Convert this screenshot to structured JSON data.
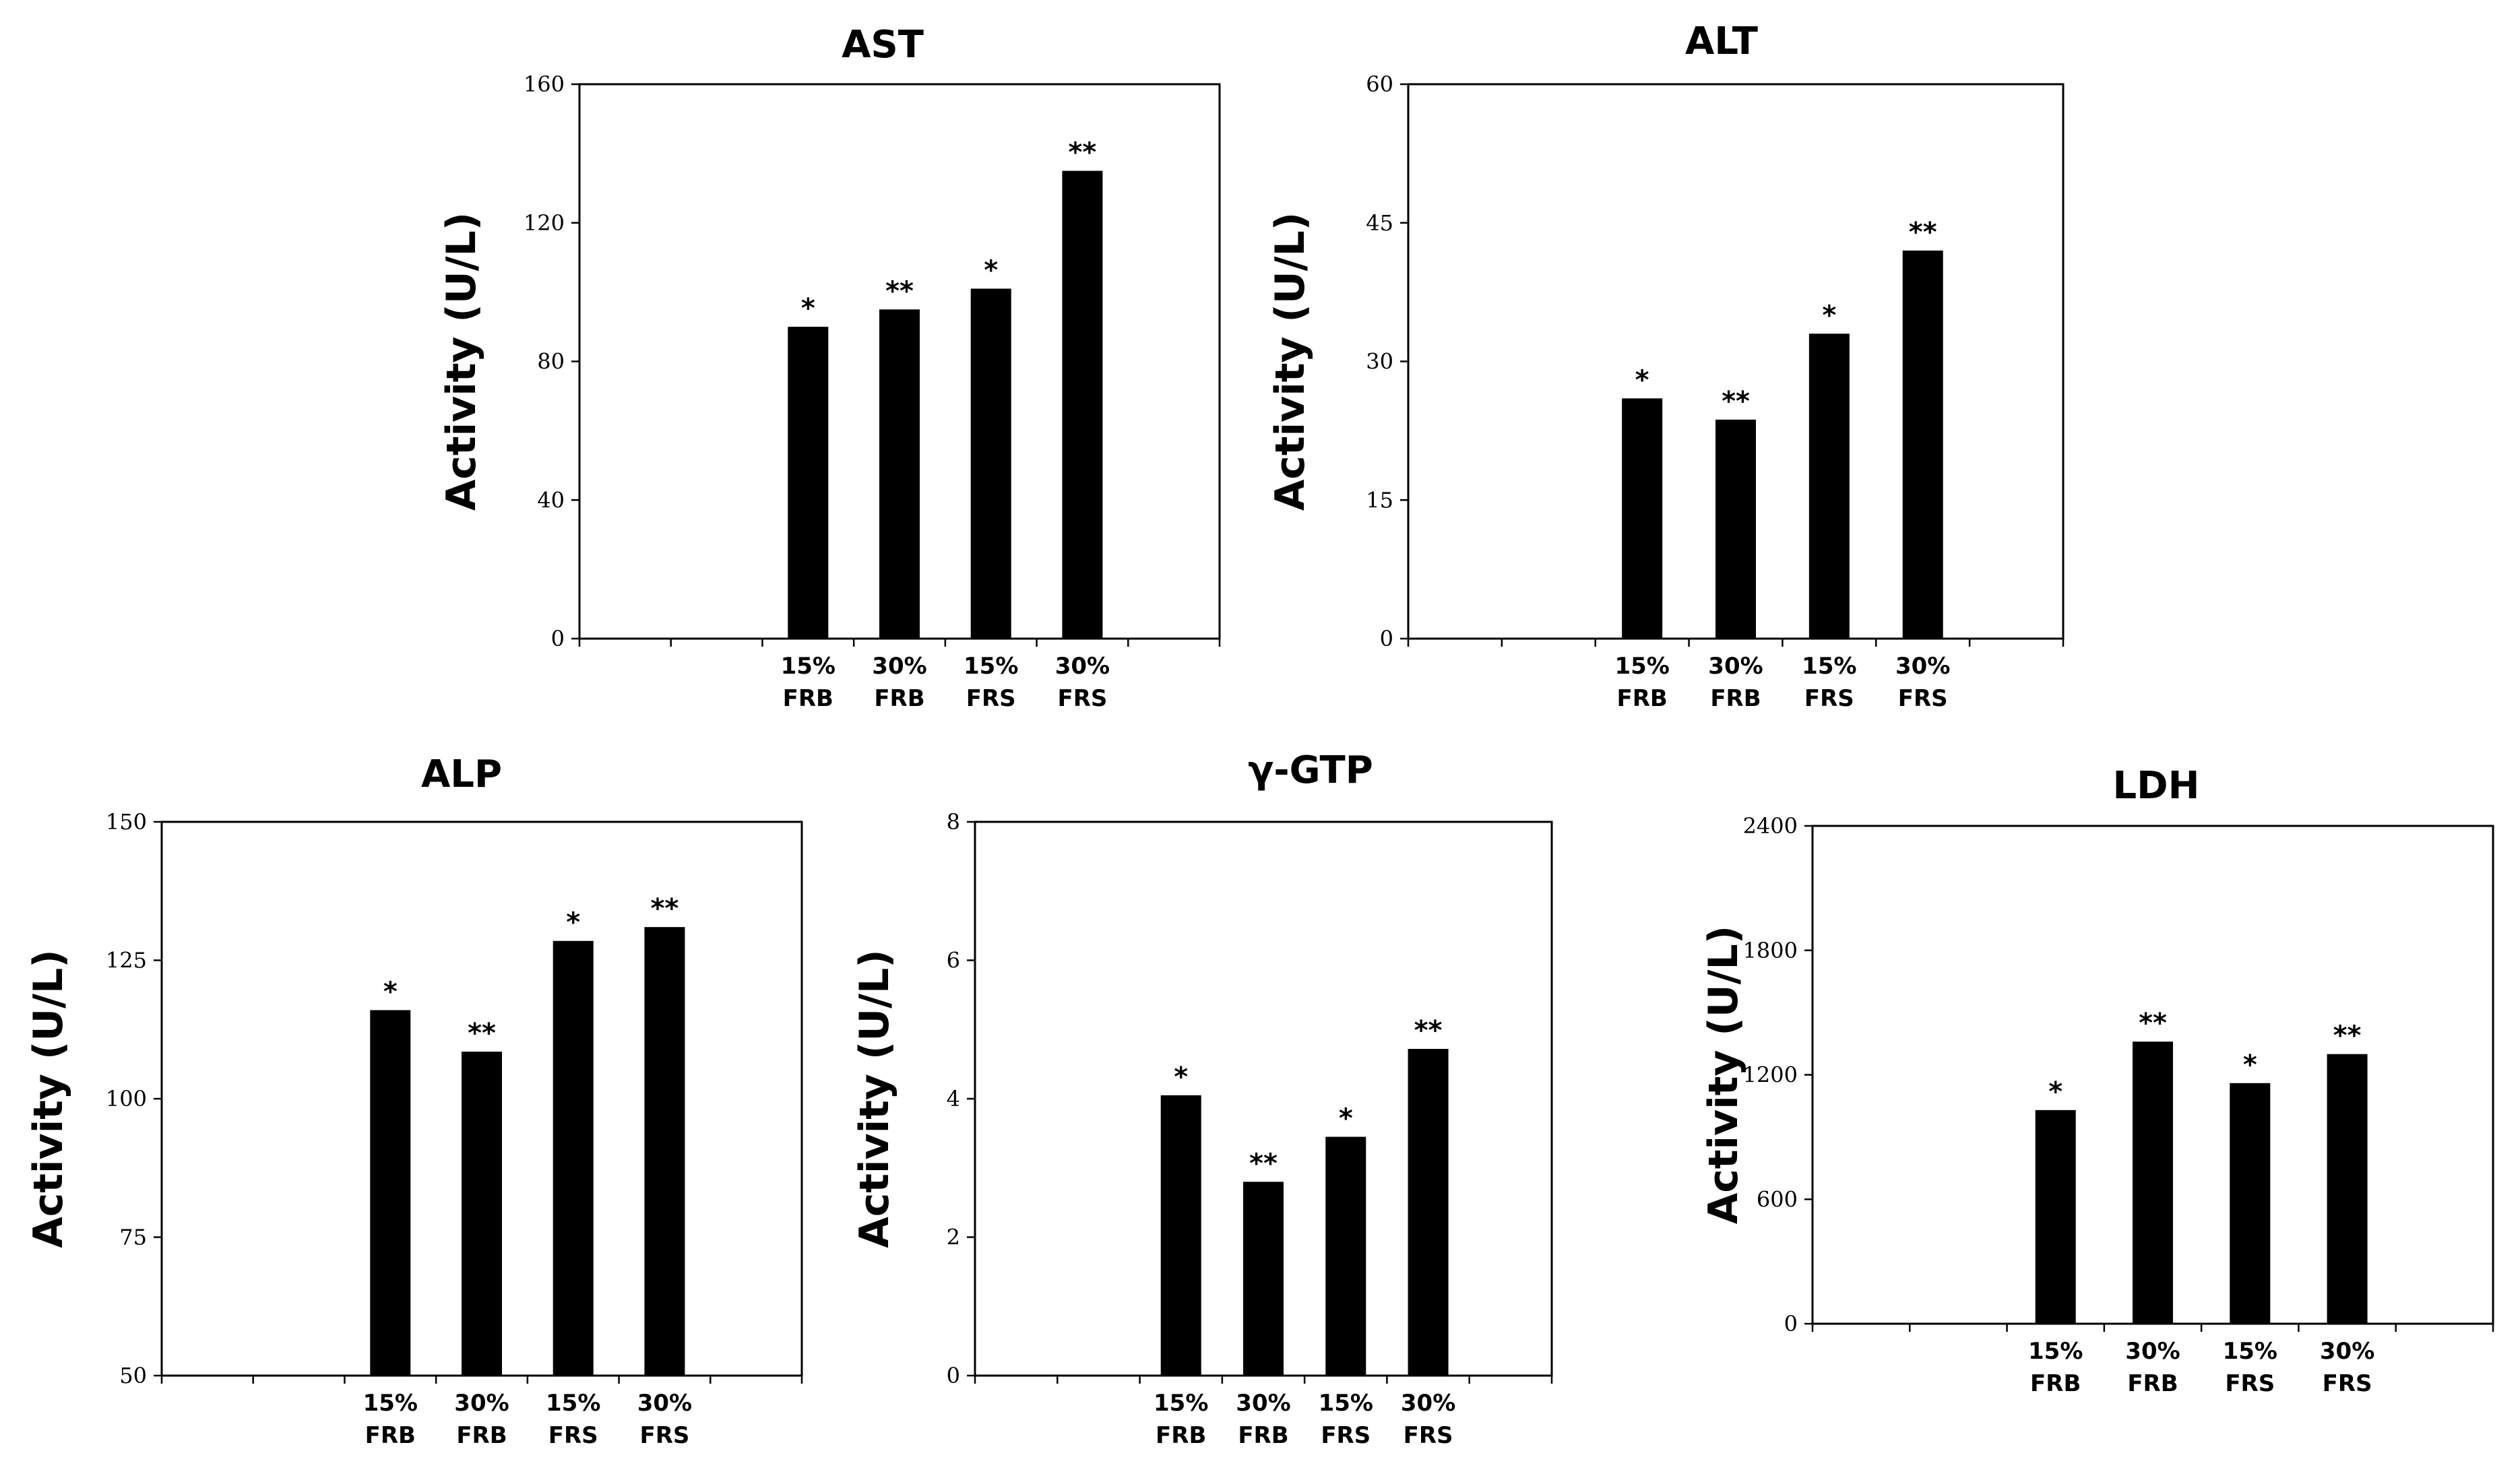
{
  "colors": {
    "bar": "#000000",
    "background": "#ffffff"
  },
  "chart_data": [
    {
      "type": "bar",
      "title": "AST",
      "ylabel": "Activity (U/L)",
      "xlabel": "",
      "ylim": [
        0,
        160
      ],
      "yticks": [
        "0",
        "40",
        "80",
        "120",
        "160"
      ],
      "slots": 7,
      "first_bar_slot": 2,
      "categories": [
        [
          "15%",
          "FRB"
        ],
        [
          "30%",
          "FRB"
        ],
        [
          "15%",
          "FRS"
        ],
        [
          "30%",
          "FRS"
        ]
      ],
      "values": [
        90,
        95,
        101,
        135
      ],
      "significance": [
        "*",
        "**",
        "*",
        "**"
      ]
    },
    {
      "type": "bar",
      "title": "ALT",
      "ylabel": "Activity (U/L)",
      "xlabel": "",
      "ylim": [
        0,
        60
      ],
      "yticks": [
        "0",
        "15",
        "30",
        "45",
        "60"
      ],
      "slots": 7,
      "first_bar_slot": 2,
      "categories": [
        [
          "15%",
          "FRB"
        ],
        [
          "30%",
          "FRB"
        ],
        [
          "15%",
          "FRS"
        ],
        [
          "30%",
          "FRS"
        ]
      ],
      "values": [
        26,
        23.7,
        33,
        42
      ],
      "significance": [
        "*",
        "**",
        "*",
        "**"
      ]
    },
    {
      "type": "bar",
      "title": "ALP",
      "ylabel": "Activity (U/L)",
      "xlabel": "",
      "ylim": [
        50,
        150
      ],
      "yticks": [
        "50",
        "75",
        "100",
        "125",
        "150"
      ],
      "slots": 7,
      "first_bar_slot": 2,
      "categories": [
        [
          "15%",
          "FRB"
        ],
        [
          "30%",
          "FRB"
        ],
        [
          "15%",
          "FRS"
        ],
        [
          "30%",
          "FRS"
        ]
      ],
      "values": [
        116,
        108.5,
        128.5,
        131
      ],
      "significance": [
        "*",
        "**",
        "*",
        "**"
      ]
    },
    {
      "type": "bar",
      "title": "γ-GTP",
      "ylabel": "Activity (U/L)",
      "xlabel": "",
      "ylim": [
        0,
        8
      ],
      "yticks": [
        "0",
        "2",
        "4",
        "6",
        "8"
      ],
      "slots": 7,
      "first_bar_slot": 2,
      "categories": [
        [
          "15%",
          "FRB"
        ],
        [
          "30%",
          "FRB"
        ],
        [
          "15%",
          "FRS"
        ],
        [
          "30%",
          "FRS"
        ]
      ],
      "values": [
        4.05,
        2.8,
        3.45,
        4.72
      ],
      "significance": [
        "*",
        "**",
        "*",
        "**"
      ]
    },
    {
      "type": "bar",
      "title": "LDH",
      "ylabel": "Activity (U/L)",
      "xlabel": "",
      "ylim": [
        0,
        2400
      ],
      "yticks": [
        "0",
        "600",
        "1200",
        "1800",
        "2400"
      ],
      "slots": 7,
      "first_bar_slot": 2,
      "categories": [
        [
          "15%",
          "FRB"
        ],
        [
          "30%",
          "FRB"
        ],
        [
          "15%",
          "FRS"
        ],
        [
          "30%",
          "FRS"
        ]
      ],
      "values": [
        1030,
        1360,
        1160,
        1300
      ],
      "significance": [
        "*",
        "**",
        "*",
        "**"
      ]
    }
  ]
}
